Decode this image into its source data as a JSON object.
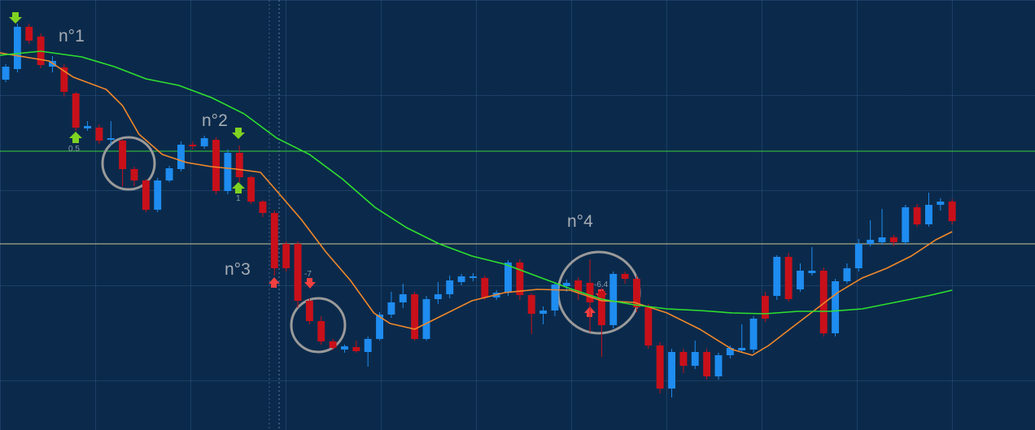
{
  "chart_data": {
    "type": "candlestick",
    "xlim": [
      -0.49,
      88.09
    ],
    "ylim": [
      0,
      529
    ],
    "up_color": "#1e8cf0",
    "down_color": "#c8101a",
    "open": [
      431,
      444,
      496,
      484,
      447,
      446,
      414,
      371,
      372,
      357,
      356,
      321,
      307,
      271,
      307,
      321,
      351,
      349,
      357,
      294,
      341,
      311,
      281,
      267,
      229,
      229,
      159,
      134,
      109,
      99,
      102,
      96,
      112,
      142,
      157,
      167,
      112,
      161,
      167,
      182,
      187,
      187,
      163,
      169,
      206,
      166,
      143,
      147,
      177,
      184,
      181,
      171,
      129,
      192,
      186,
      151,
      104,
      51,
      96,
      79,
      96,
      66,
      92,
      98,
      99,
      165,
      165,
      213,
      173,
      193,
      196,
      119,
      183,
      199,
      229,
      231,
      237,
      231,
      274,
      253,
      277,
      281
    ],
    "high": [
      450,
      500,
      500,
      488,
      460,
      450,
      416,
      380,
      376,
      380,
      358,
      324,
      309,
      310,
      325,
      355,
      355,
      362,
      360,
      345,
      350,
      313,
      283,
      270,
      232,
      232,
      162,
      140,
      112,
      105,
      110,
      115,
      145,
      170,
      180,
      170,
      165,
      182,
      190,
      192,
      193,
      190,
      172,
      209,
      210,
      168,
      152,
      182,
      185,
      188,
      210,
      175,
      195,
      195,
      190,
      155,
      108,
      100,
      100,
      110,
      100,
      95,
      104,
      130,
      140,
      170,
      215,
      218,
      205,
      225,
      200,
      186,
      205,
      235,
      258,
      272,
      240,
      277,
      278,
      292,
      285,
      284
    ],
    "low": [
      428,
      440,
      475,
      445,
      440,
      410,
      368,
      368,
      352,
      350,
      300,
      300,
      268,
      268,
      305,
      318,
      345,
      346,
      290,
      290,
      305,
      278,
      262,
      190,
      195,
      150,
      130,
      105,
      98,
      95,
      95,
      78,
      110,
      138,
      150,
      110,
      110,
      155,
      162,
      178,
      183,
      160,
      160,
      165,
      160,
      118,
      130,
      140,
      170,
      160,
      120,
      90,
      125,
      180,
      145,
      100,
      45,
      40,
      70,
      75,
      62,
      62,
      88,
      95,
      95,
      133,
      160,
      158,
      170,
      190,
      115,
      115,
      180,
      195,
      226,
      228,
      226,
      228,
      250,
      250,
      270,
      253
    ],
    "close": [
      447,
      496,
      479,
      449,
      454,
      416,
      372,
      374,
      356,
      359,
      321,
      307,
      271,
      307,
      322,
      351,
      349,
      359,
      294,
      341,
      311,
      281,
      267,
      199,
      199,
      159,
      134,
      109,
      101,
      103,
      97,
      112,
      142,
      157,
      167,
      112,
      161,
      167,
      184,
      189,
      189,
      163,
      169,
      206,
      166,
      143,
      147,
      179,
      181,
      169,
      157,
      129,
      192,
      186,
      151,
      104,
      51,
      96,
      79,
      96,
      66,
      92,
      101,
      101,
      137,
      137,
      213,
      161,
      196,
      196,
      119,
      183,
      199,
      229,
      234,
      237,
      231,
      274,
      253,
      277,
      281,
      257
    ],
    "lines": [
      {
        "color": "#f0882a",
        "x": [
          -0.5,
          3.7,
          5.8,
          8.6,
          10,
          11.4,
          13.4,
          15.5,
          17.6,
          19.7,
          21.8,
          23.2,
          25.3,
          27.4,
          29.5,
          31.5,
          32.9,
          35,
          37.1,
          39.9,
          42.7,
          45.5,
          48.3,
          51,
          53.8,
          56.6,
          59.4,
          62.2,
          63.9,
          65.3,
          67.1,
          69.2,
          71.2,
          73.3,
          75.4,
          77.5,
          79.6,
          81
        ],
        "values": [
          464,
          454,
          434,
          419,
          399,
          364,
          339,
          329,
          324,
          321,
          317,
          294,
          259,
          219,
          184,
          144,
          131,
          124,
          139,
          159,
          169,
          173,
          172,
          159,
          157,
          144,
          124,
          99,
          92,
          104,
          124,
          147,
          169,
          187,
          199,
          214,
          234,
          244
        ]
      },
      {
        "color": "#2ee02e",
        "x": [
          -0.5,
          3,
          6.5,
          9.3,
          12,
          14.8,
          17.6,
          20.4,
          23.2,
          26,
          28.8,
          31.6,
          34.3,
          37.1,
          39.9,
          42.7,
          45.5,
          48.3,
          51,
          53.8,
          56.6,
          59.4,
          62.2,
          65,
          67.8,
          70.5,
          73.3,
          76.1,
          78.9,
          81
        ],
        "values": [
          461,
          466,
          459,
          447,
          432,
          424,
          409,
          389,
          359,
          339,
          309,
          274,
          249,
          229,
          214,
          204,
          189,
          174,
          161,
          154,
          149,
          147,
          144,
          143,
          146,
          146,
          149,
          157,
          165,
          172
        ]
      }
    ],
    "levels": [
      {
        "value": 343,
        "color": "#3ad03a"
      },
      {
        "value": 229,
        "color": "#c8c890"
      }
    ],
    "annotations": [
      "n°1",
      "n°2",
      "n°3",
      "n°4",
      "0.5",
      "1",
      "-7",
      "-6.4"
    ]
  }
}
